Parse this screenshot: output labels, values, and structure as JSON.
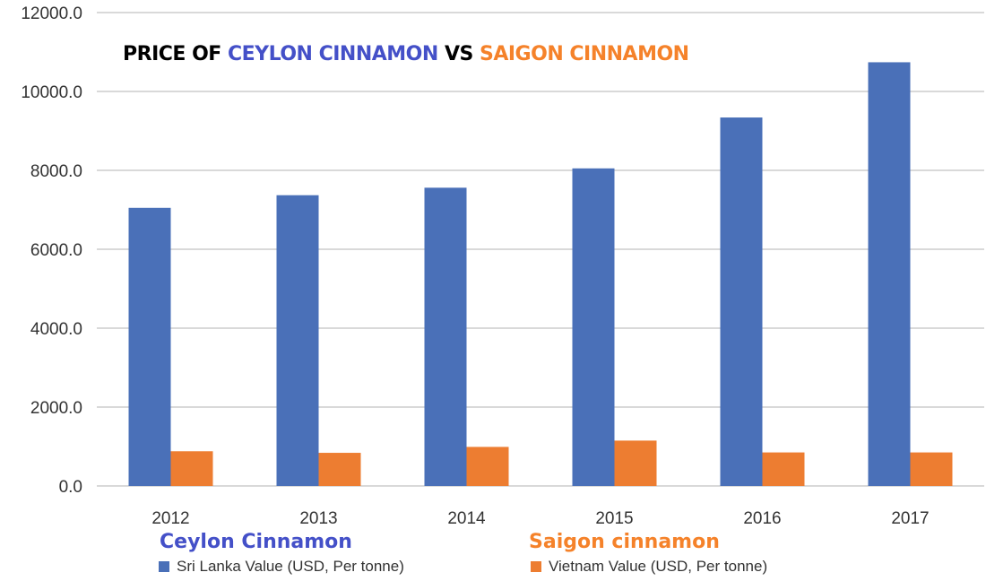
{
  "chart_data": {
    "type": "bar",
    "title_parts": [
      {
        "text": "PRICE OF ",
        "color": "#000000"
      },
      {
        "text": "CEYLON CINNAMON",
        "color": "#4450c8"
      },
      {
        "text": " VS ",
        "color": "#000000"
      },
      {
        "text": "SAIGON CINNAMON",
        "color": "#f5822a"
      }
    ],
    "categories": [
      "2012",
      "2013",
      "2014",
      "2015",
      "2016",
      "2017"
    ],
    "series": [
      {
        "name": "Sri Lanka Value (USD, Per tonne)",
        "heading": "Ceylon Cinnamon",
        "heading_color": "#4450c8",
        "color": "#4a70b8",
        "values": [
          7050,
          7370,
          7560,
          8050,
          9340,
          10740
        ]
      },
      {
        "name": "Vietnam Value (USD, Per tonne)",
        "heading": "Saigon cinnamon",
        "heading_color": "#f5822a",
        "color": "#ed7d31",
        "values": [
          880,
          840,
          990,
          1150,
          850,
          850
        ]
      }
    ],
    "yticks": [
      "0.0",
      "2000.0",
      "4000.0",
      "6000.0",
      "8000.0",
      "10000.0",
      "12000.0"
    ],
    "ylim": [
      0,
      12000
    ],
    "grid": true,
    "legend": "bottom",
    "xlabel": "",
    "ylabel": ""
  }
}
